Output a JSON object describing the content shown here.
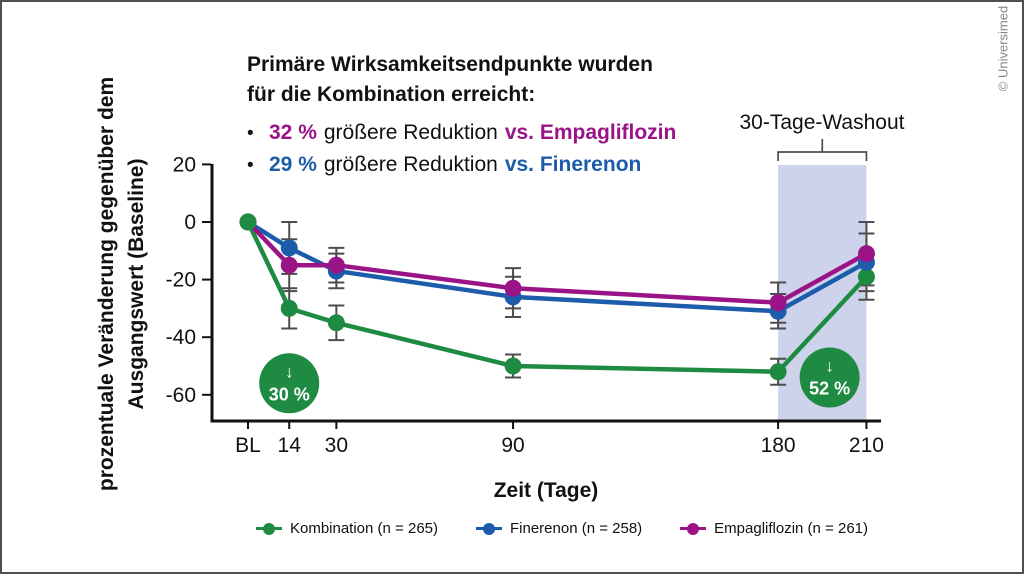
{
  "copyright": "© Universimed",
  "headline": {
    "line1": "Primäre Wirksamkeitsendpunkte wurden",
    "line2": "für die Kombination erreicht:",
    "bullet_char": "•",
    "bullets": [
      {
        "value": "32 %",
        "mid": "größere Reduktion",
        "vs": "vs. Empagliflozin",
        "color": "#9b1487"
      },
      {
        "value": "29 %",
        "mid": "größere Reduktion",
        "vs": "vs. Finerenon",
        "color": "#1d5cab"
      }
    ]
  },
  "chart_data": {
    "type": "line",
    "x": [
      0,
      14,
      30,
      90,
      180,
      210
    ],
    "x_tick_labels": [
      "BL",
      "14",
      "30",
      "90",
      "180",
      "210"
    ],
    "xlabel": "Zeit (Tage)",
    "ylabel_line1": "prozentuale Veränderung gegenüber dem",
    "ylabel_line2": "Ausgangswert (Baseline)",
    "yticks": [
      20,
      0,
      -20,
      -40,
      -60
    ],
    "ylim": [
      -69,
      20
    ],
    "grid": false,
    "legend_position": "bottom",
    "series": [
      {
        "name": "Kombination (n = 265)",
        "color": "#1f8b42",
        "values": [
          0,
          -30,
          -35,
          -50,
          -52,
          -19
        ],
        "errors": [
          0,
          7,
          6,
          4,
          4.5,
          8
        ]
      },
      {
        "name": "Finerenon (n = 258)",
        "color": "#1d5cab",
        "values": [
          0,
          -9,
          -17,
          -26,
          -31,
          -14
        ],
        "errors": [
          0,
          9,
          6,
          7,
          6,
          10
        ]
      },
      {
        "name": "Empagliflozin (n = 261)",
        "color": "#9b1487",
        "values": [
          0,
          -15,
          -15,
          -23,
          -28,
          -11
        ],
        "errors": [
          0,
          9,
          6,
          7,
          7,
          11
        ]
      }
    ],
    "washout_region": {
      "from_day": 180,
      "to_day": 210,
      "fill": "#ccd3ea",
      "label": "30-Tage-Washout"
    },
    "annotations": [
      {
        "arrow": "↓",
        "label": "30 %",
        "day": 14,
        "value": -56,
        "fill": "#1f8b42"
      },
      {
        "arrow": "↓",
        "label": "52 %",
        "day": 197.5,
        "value": -54,
        "fill": "#1f8b42"
      }
    ]
  }
}
